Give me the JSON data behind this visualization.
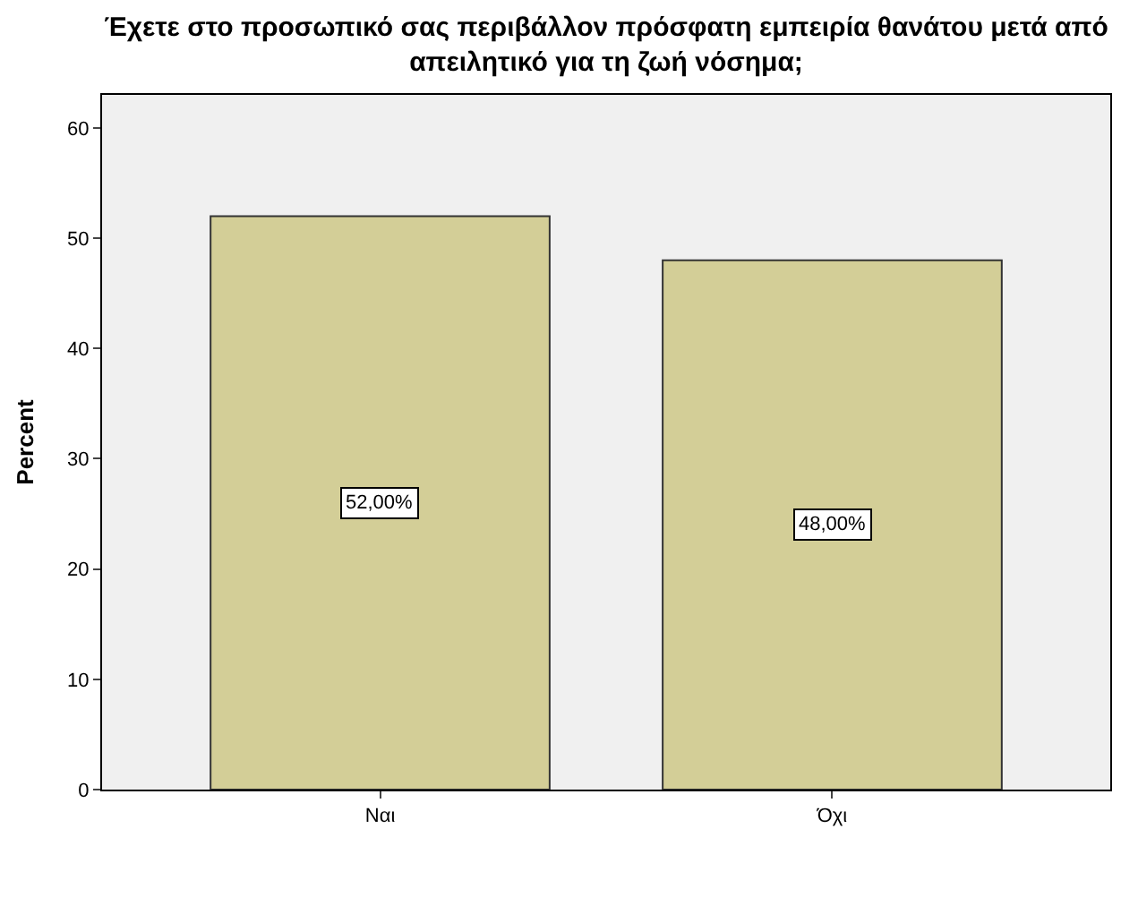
{
  "chart_data": {
    "type": "bar",
    "title": "Έχετε στο προσωπικό σας περιβάλλον πρόσφατη εμπειρία θανάτου μετά από\nαπειλητικό για τη ζωή νόσημα;",
    "ylabel": "Percent",
    "categories": [
      "Ναι",
      "Όχι"
    ],
    "values": [
      52,
      48
    ],
    "value_labels": [
      "52,00%",
      "48,00%"
    ],
    "color": "#d3ce97",
    "ylim": [
      0,
      63
    ],
    "yticks": [
      0,
      10,
      20,
      30,
      40,
      50,
      60
    ],
    "grid": false,
    "legend": false
  }
}
